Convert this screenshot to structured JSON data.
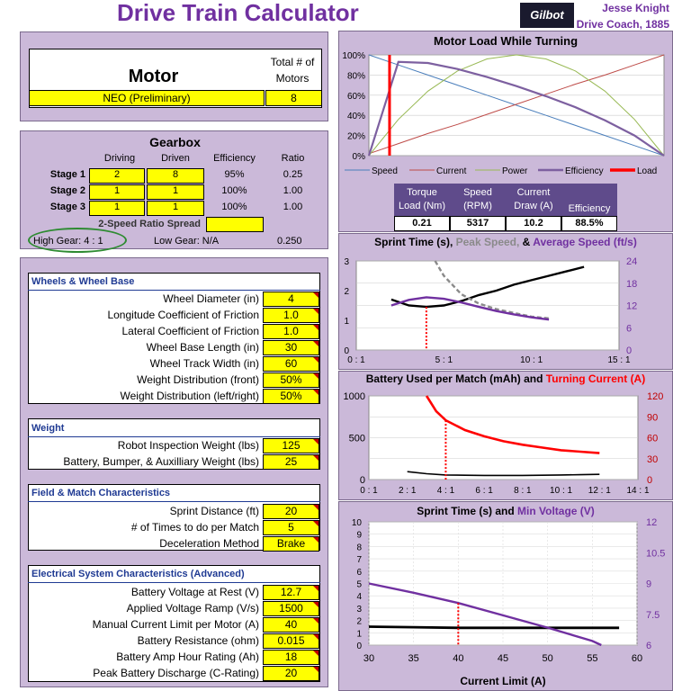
{
  "header": {
    "title": "Drive Train Calculator",
    "logo_text": "Gilbot",
    "author": "Jesse Knight",
    "role": "Drive Coach, 1885"
  },
  "motor": {
    "title": "Motor",
    "count_label": "Total # of Motors",
    "name": "NEO (Preliminary)",
    "count": "8"
  },
  "gearbox": {
    "title": "Gearbox",
    "headers": [
      "Driving",
      "Driven",
      "Efficiency",
      "Ratio"
    ],
    "stages": [
      {
        "label": "Stage 1",
        "driving": "2",
        "driven": "8",
        "efficiency": "95%",
        "ratio": "0.25"
      },
      {
        "label": "Stage 2",
        "driving": "1",
        "driven": "1",
        "efficiency": "100%",
        "ratio": "1.00"
      },
      {
        "label": "Stage 3",
        "driving": "1",
        "driven": "1",
        "efficiency": "100%",
        "ratio": "1.00"
      }
    ],
    "spread_label": "2-Speed Ratio Spread",
    "spread_value": "",
    "high_gear": "High Gear:  4 : 1",
    "low_gear": "Low Gear:  N/A",
    "total_ratio": "0.250"
  },
  "wheels": {
    "title": "Wheels & Wheel Base",
    "rows": [
      {
        "label": "Wheel Diameter (in)",
        "value": "4"
      },
      {
        "label": "Longitude Coefficient of Friction",
        "value": "1.0"
      },
      {
        "label": "Lateral Coefficient of Friction",
        "value": "1.0"
      },
      {
        "label": "Wheel Base Length (in)",
        "value": "30"
      },
      {
        "label": "Wheel Track Width (in)",
        "value": "60"
      },
      {
        "label": "Weight Distribution (front)",
        "value": "50%"
      },
      {
        "label": "Weight Distribution (left/right)",
        "value": "50%"
      }
    ]
  },
  "weight": {
    "title": "Weight",
    "rows": [
      {
        "label": "Robot Inspection Weight (lbs)",
        "value": "125"
      },
      {
        "label": "Battery, Bumper, & Auxilliary Weight (lbs)",
        "value": "25"
      }
    ]
  },
  "field": {
    "title": "Field & Match Characteristics",
    "rows": [
      {
        "label": "Sprint Distance (ft)",
        "value": "20"
      },
      {
        "label": "# of Times to do per Match",
        "value": "5"
      },
      {
        "label": "Deceleration Method",
        "value": "Brake"
      }
    ]
  },
  "electrical": {
    "title": "Electrical System Characteristics (Advanced)",
    "rows": [
      {
        "label": "Battery Voltage at Rest (V)",
        "value": "12.7"
      },
      {
        "label": "Applied Voltage Ramp (V/s)",
        "value": "1500"
      },
      {
        "label": "Manual Current Limit per Motor (A)",
        "value": "40"
      },
      {
        "label": "Battery Resistance (ohm)",
        "value": "0.015"
      },
      {
        "label": "Battery Amp Hour Rating (Ah)",
        "value": "18"
      },
      {
        "label": "Peak Battery Discharge (C-Rating)",
        "value": "20"
      }
    ]
  },
  "load_table": {
    "headers": [
      "Torque Load (Nm)",
      "Speed (RPM)",
      "Current Draw (A)",
      "Efficiency"
    ],
    "values": [
      "0.21",
      "5317",
      "10.2",
      "88.5%"
    ]
  },
  "colors": {
    "panel": "#cbb9d9",
    "title_purple": "#7030a0",
    "input_yellow": "#ffff00",
    "speed": "#4a7ebb",
    "current": "#be4b48",
    "power": "#98b954",
    "efficiency": "#7d60a0",
    "load": "#ff0000"
  },
  "chart_data": [
    {
      "type": "line",
      "title": "Motor Load While Turning",
      "x": [
        0,
        10,
        20,
        30,
        40,
        50,
        60,
        70,
        80,
        90,
        100
      ],
      "ylim": [
        0,
        100
      ],
      "yticks": [
        "0%",
        "20%",
        "40%",
        "60%",
        "80%",
        "100%"
      ],
      "series": [
        {
          "name": "Speed",
          "values": [
            100,
            90,
            80,
            70,
            60,
            50,
            40,
            30,
            20,
            10,
            0
          ]
        },
        {
          "name": "Current",
          "values": [
            2,
            12,
            22,
            31,
            41,
            51,
            61,
            71,
            80,
            90,
            100
          ]
        },
        {
          "name": "Power",
          "values": [
            0,
            36,
            64,
            84,
            96,
            100,
            96,
            84,
            64,
            36,
            0
          ]
        },
        {
          "name": "Efficiency",
          "values": [
            0,
            93,
            92,
            86,
            78,
            69,
            59,
            48,
            35,
            20,
            0
          ]
        }
      ],
      "load_marker": {
        "name": "Load",
        "x": 7
      }
    },
    {
      "type": "line",
      "title_parts": [
        "Sprint Time (s), ",
        "Peak Speed, ",
        "& ",
        "Average Speed (ft/s)"
      ],
      "x": [
        1,
        2,
        3,
        4,
        5,
        6,
        7,
        8,
        9,
        10,
        11,
        12,
        13
      ],
      "xticks": [
        "0 : 1",
        "5 : 1",
        "10 : 1",
        "15 : 1"
      ],
      "ylim": [
        0,
        3
      ],
      "yticks_left": [
        "0",
        "1",
        "2",
        "3"
      ],
      "y2lim": [
        0,
        24
      ],
      "yticks_right": [
        "0",
        "6",
        "12",
        "18",
        "24"
      ],
      "series": [
        {
          "name": "Sprint Time (s)",
          "axis": "left",
          "x": [
            2,
            3,
            4,
            5,
            6,
            7,
            8,
            9,
            10,
            11,
            12,
            13
          ],
          "values": [
            1.7,
            1.5,
            1.45,
            1.5,
            1.65,
            1.85,
            2.0,
            2.2,
            2.35,
            2.5,
            2.65,
            2.8
          ]
        },
        {
          "name": "Peak Speed",
          "axis": "right",
          "x": [
            4.5,
            5,
            6,
            7,
            8,
            9,
            10,
            11
          ],
          "values": [
            24,
            20,
            15,
            12.5,
            11,
            10,
            9,
            8.5
          ]
        },
        {
          "name": "Average Speed (ft/s)",
          "axis": "right",
          "x": [
            2,
            3,
            4,
            5,
            6,
            7,
            8,
            9,
            10,
            11
          ],
          "values": [
            12,
            13.5,
            14.2,
            13.8,
            12.8,
            11.6,
            10.5,
            9.6,
            8.8,
            8.2
          ]
        }
      ],
      "marker_x": 4
    },
    {
      "type": "line",
      "title_parts": [
        "Battery Used per Match (mAh) and ",
        "Turning Current (A)"
      ],
      "x": [
        2,
        3,
        4,
        5,
        6,
        7,
        8,
        9,
        10,
        11,
        12
      ],
      "xticks": [
        "0 : 1",
        "2 : 1",
        "4 : 1",
        "6 : 1",
        "8 : 1",
        "10 : 1",
        "12 : 1",
        "14 : 1"
      ],
      "ylim": [
        0,
        1000
      ],
      "yticks_left": [
        "0",
        "500",
        "1000"
      ],
      "y2lim": [
        0,
        120
      ],
      "yticks_right": [
        "0",
        "30",
        "60",
        "90",
        "120"
      ],
      "series": [
        {
          "name": "Battery Used per Match (mAh)",
          "axis": "left",
          "x": [
            2,
            3,
            4,
            5,
            6,
            7,
            8,
            9,
            10,
            11,
            12
          ],
          "values": [
            95,
            70,
            55,
            52,
            50,
            50,
            50,
            52,
            55,
            58,
            62
          ]
        },
        {
          "name": "Turning Current (A)",
          "axis": "right",
          "x": [
            3,
            3.5,
            4,
            5,
            6,
            7,
            8,
            9,
            10,
            11,
            12
          ],
          "values": [
            120,
            98,
            85,
            71,
            62,
            55,
            50,
            46,
            42,
            40,
            38
          ]
        }
      ],
      "marker_x": 4
    },
    {
      "type": "line",
      "title_parts": [
        "Sprint Time (s) and ",
        "Min Voltage (V)"
      ],
      "x": [
        30,
        35,
        40,
        45,
        50,
        55,
        60
      ],
      "xlabel": "Current Limit (A)",
      "xticks": [
        "30",
        "35",
        "40",
        "45",
        "50",
        "55",
        "60"
      ],
      "ylim": [
        0,
        10
      ],
      "yticks_left": [
        "0",
        "1",
        "2",
        "3",
        "4",
        "5",
        "6",
        "7",
        "8",
        "9",
        "10"
      ],
      "y2lim": [
        6,
        12
      ],
      "yticks_right": [
        "6",
        "7.5",
        "9",
        "10.5",
        "12"
      ],
      "series": [
        {
          "name": "Sprint Time (s)",
          "axis": "left",
          "x": [
            30,
            35,
            40,
            45,
            50,
            55,
            58
          ],
          "values": [
            1.5,
            1.45,
            1.4,
            1.4,
            1.4,
            1.4,
            1.4
          ]
        },
        {
          "name": "Min Voltage (V)",
          "axis": "right",
          "x": [
            30,
            35,
            40,
            45,
            50,
            55,
            56
          ],
          "values": [
            9.0,
            8.55,
            8.05,
            7.45,
            6.85,
            6.2,
            6.0
          ]
        }
      ],
      "marker_x": 40
    }
  ]
}
